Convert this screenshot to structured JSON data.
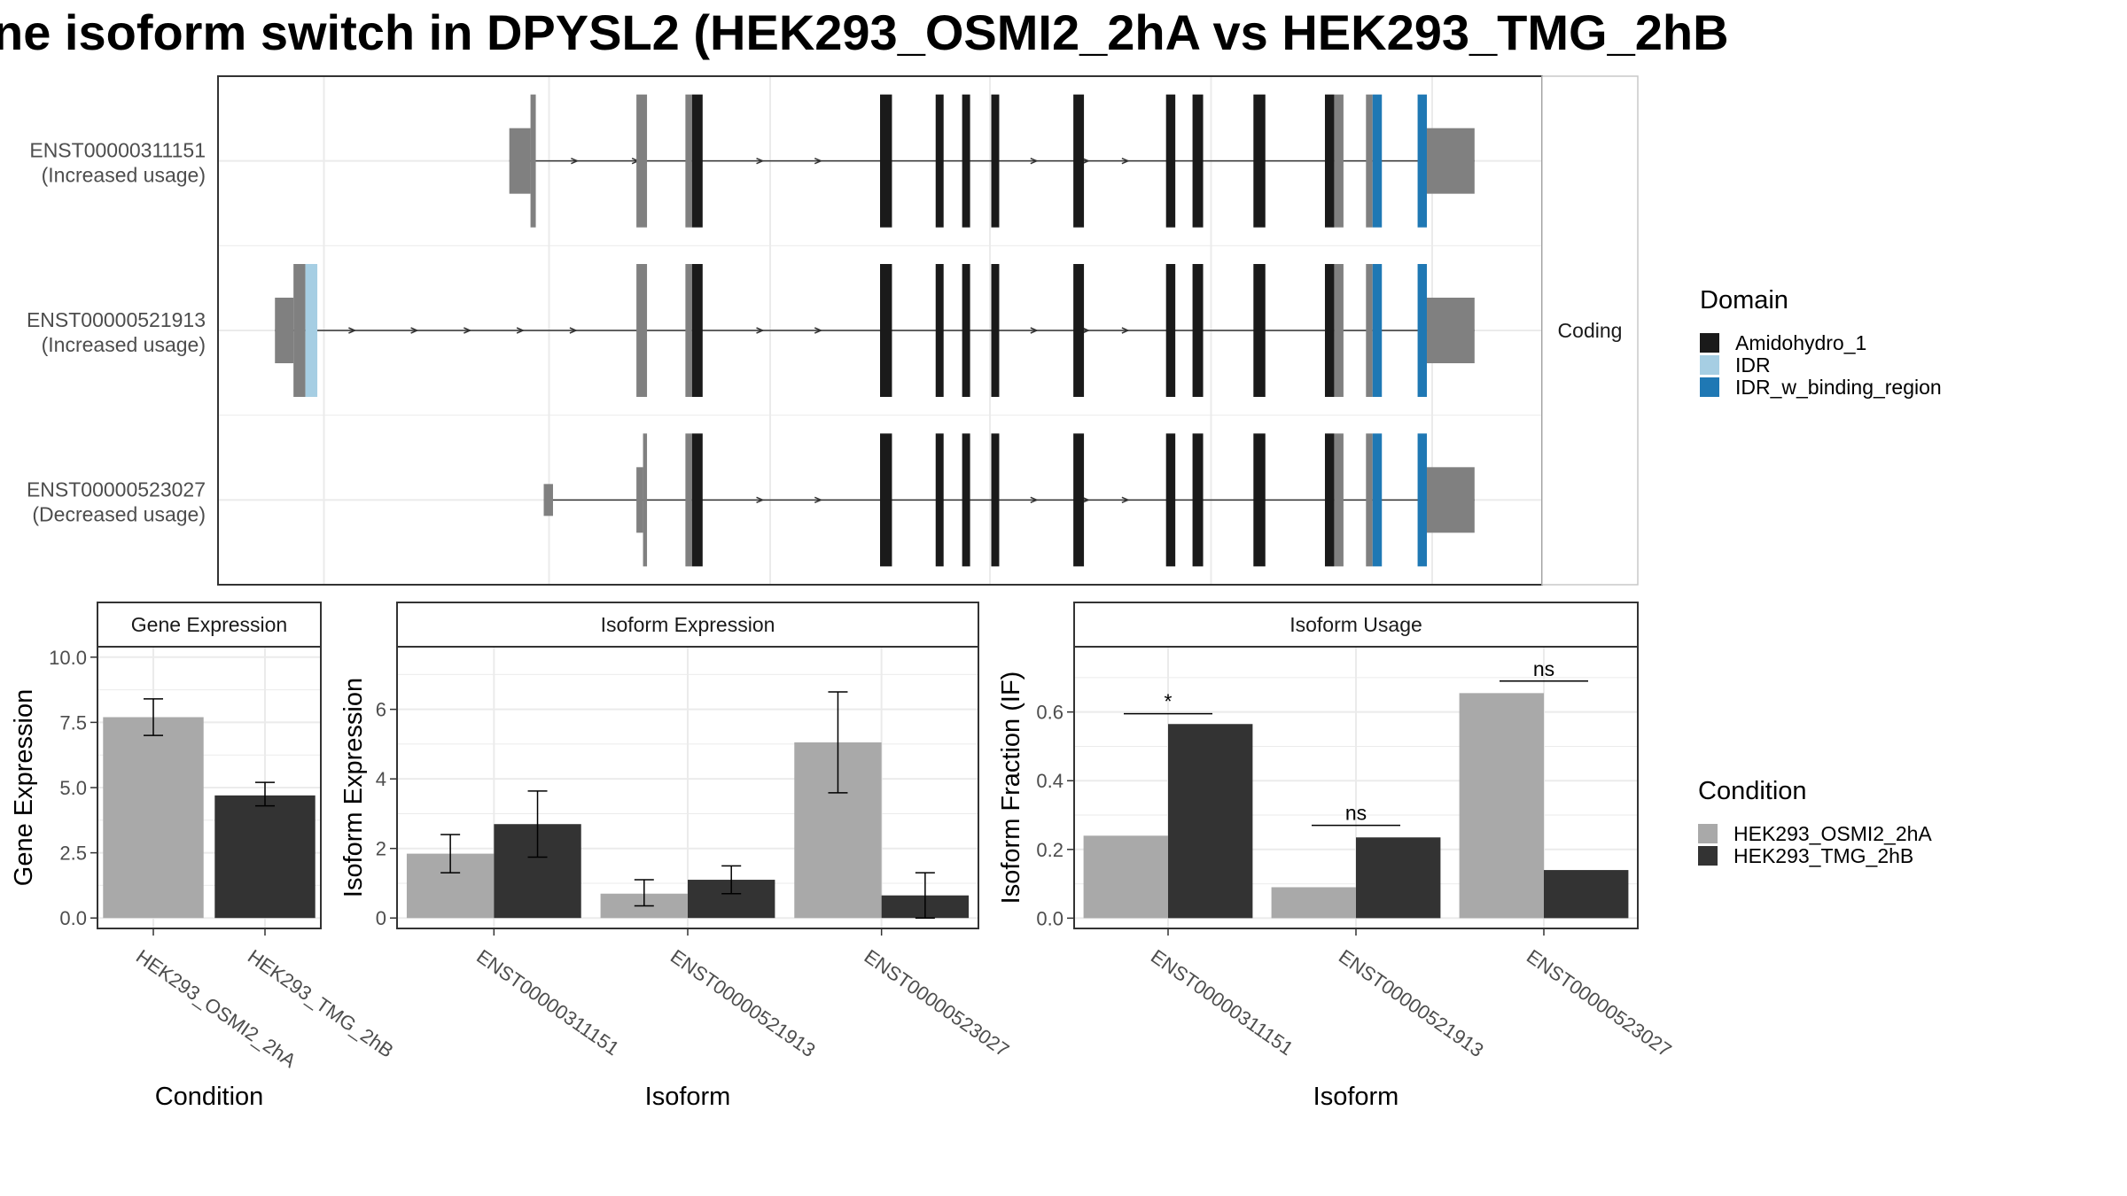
{
  "title": "ne isoform switch in DPYSL2 (HEK293_OSMI2_2hA vs HEK293_TMG_2hB",
  "colors": {
    "utr": "#808080",
    "amidohydro": "#1a1a1a",
    "idr": "#a6cee3",
    "idr_binding": "#1f78b4",
    "cond_a": "#a9a9a9",
    "cond_b": "#333333",
    "grid": "#ebebeb",
    "panel_border": "#333333",
    "strip_bg": "#ffffff"
  },
  "legend_domain": {
    "title": "Domain",
    "items": [
      {
        "label": "Amidohydro_1",
        "color": "#1a1a1a"
      },
      {
        "label": "IDR",
        "color": "#a6cee3"
      },
      {
        "label": "IDR_w_binding_region",
        "color": "#1f78b4"
      }
    ]
  },
  "legend_condition": {
    "title": "Condition",
    "items": [
      {
        "label": "HEK293_OSMI2_2hA",
        "color": "#a9a9a9"
      },
      {
        "label": "HEK293_TMG_2hB",
        "color": "#333333"
      }
    ]
  },
  "chart_data": [
    {
      "type": "gene-structure",
      "facet_label": "Coding",
      "x_range": [
        0,
        1000
      ],
      "isoforms": [
        {
          "id": "ENST00000311151",
          "usage": "(Increased usage)",
          "exons": [
            {
              "s": 220,
              "e": 236,
              "kind": "utr",
              "h": "utr"
            },
            {
              "s": 236,
              "e": 240,
              "kind": "utr",
              "h": "cds"
            },
            {
              "s": 316,
              "e": 324,
              "kind": "utr",
              "h": "cds"
            },
            {
              "s": 353,
              "e": 358,
              "kind": "utr",
              "h": "cds"
            },
            {
              "s": 358,
              "e": 366,
              "kind": "amidohydro",
              "h": "cds"
            },
            {
              "s": 500,
              "e": 509,
              "kind": "amidohydro",
              "h": "cds"
            },
            {
              "s": 542,
              "e": 548,
              "kind": "amidohydro",
              "h": "cds"
            },
            {
              "s": 562,
              "e": 568,
              "kind": "amidohydro",
              "h": "cds"
            },
            {
              "s": 584,
              "e": 590,
              "kind": "amidohydro",
              "h": "cds"
            },
            {
              "s": 646,
              "e": 654,
              "kind": "amidohydro",
              "h": "cds"
            },
            {
              "s": 716,
              "e": 723,
              "kind": "amidohydro",
              "h": "cds"
            },
            {
              "s": 736,
              "e": 744,
              "kind": "amidohydro",
              "h": "cds"
            },
            {
              "s": 782,
              "e": 791,
              "kind": "amidohydro",
              "h": "cds"
            },
            {
              "s": 836,
              "e": 843,
              "kind": "amidohydro",
              "h": "cds"
            },
            {
              "s": 843,
              "e": 850,
              "kind": "utr",
              "h": "cds"
            },
            {
              "s": 867,
              "e": 872,
              "kind": "utr",
              "h": "cds"
            },
            {
              "s": 872,
              "e": 879,
              "kind": "idr_binding",
              "h": "cds"
            },
            {
              "s": 906,
              "e": 913,
              "kind": "idr_binding",
              "h": "cds"
            },
            {
              "s": 913,
              "e": 949,
              "kind": "utr",
              "h": "utr"
            }
          ],
          "arrows": [
            270,
            316,
            410,
            454,
            617,
            656,
            686
          ]
        },
        {
          "id": "ENST00000521913",
          "usage": "(Increased usage)",
          "exons": [
            {
              "s": 43,
              "e": 57,
              "kind": "utr",
              "h": "utr"
            },
            {
              "s": 57,
              "e": 66,
              "kind": "utr",
              "h": "cds"
            },
            {
              "s": 66,
              "e": 75,
              "kind": "idr",
              "h": "cds"
            },
            {
              "s": 316,
              "e": 324,
              "kind": "utr",
              "h": "cds"
            },
            {
              "s": 353,
              "e": 358,
              "kind": "utr",
              "h": "cds"
            },
            {
              "s": 358,
              "e": 366,
              "kind": "amidohydro",
              "h": "cds"
            },
            {
              "s": 500,
              "e": 509,
              "kind": "amidohydro",
              "h": "cds"
            },
            {
              "s": 542,
              "e": 548,
              "kind": "amidohydro",
              "h": "cds"
            },
            {
              "s": 562,
              "e": 568,
              "kind": "amidohydro",
              "h": "cds"
            },
            {
              "s": 584,
              "e": 590,
              "kind": "amidohydro",
              "h": "cds"
            },
            {
              "s": 646,
              "e": 654,
              "kind": "amidohydro",
              "h": "cds"
            },
            {
              "s": 716,
              "e": 723,
              "kind": "amidohydro",
              "h": "cds"
            },
            {
              "s": 736,
              "e": 744,
              "kind": "amidohydro",
              "h": "cds"
            },
            {
              "s": 782,
              "e": 791,
              "kind": "amidohydro",
              "h": "cds"
            },
            {
              "s": 836,
              "e": 843,
              "kind": "amidohydro",
              "h": "cds"
            },
            {
              "s": 843,
              "e": 850,
              "kind": "utr",
              "h": "cds"
            },
            {
              "s": 867,
              "e": 872,
              "kind": "utr",
              "h": "cds"
            },
            {
              "s": 872,
              "e": 879,
              "kind": "idr_binding",
              "h": "cds"
            },
            {
              "s": 906,
              "e": 913,
              "kind": "idr_binding",
              "h": "cds"
            },
            {
              "s": 913,
              "e": 949,
              "kind": "utr",
              "h": "utr"
            }
          ],
          "arrows": [
            102,
            149,
            189,
            229,
            269,
            410,
            454,
            617,
            656,
            686
          ]
        },
        {
          "id": "ENST00000523027",
          "usage": "(Decreased usage)",
          "exons": [
            {
              "s": 246,
              "e": 253,
              "kind": "utr",
              "h": "half"
            },
            {
              "s": 316,
              "e": 321,
              "kind": "utr",
              "h": "utr"
            },
            {
              "s": 321,
              "e": 324,
              "kind": "utr",
              "h": "cds"
            },
            {
              "s": 353,
              "e": 358,
              "kind": "utr",
              "h": "cds"
            },
            {
              "s": 358,
              "e": 366,
              "kind": "amidohydro",
              "h": "cds"
            },
            {
              "s": 500,
              "e": 509,
              "kind": "amidohydro",
              "h": "cds"
            },
            {
              "s": 542,
              "e": 548,
              "kind": "amidohydro",
              "h": "cds"
            },
            {
              "s": 562,
              "e": 568,
              "kind": "amidohydro",
              "h": "cds"
            },
            {
              "s": 584,
              "e": 590,
              "kind": "amidohydro",
              "h": "cds"
            },
            {
              "s": 646,
              "e": 654,
              "kind": "amidohydro",
              "h": "cds"
            },
            {
              "s": 716,
              "e": 723,
              "kind": "amidohydro",
              "h": "cds"
            },
            {
              "s": 736,
              "e": 744,
              "kind": "amidohydro",
              "h": "cds"
            },
            {
              "s": 782,
              "e": 791,
              "kind": "amidohydro",
              "h": "cds"
            },
            {
              "s": 836,
              "e": 843,
              "kind": "amidohydro",
              "h": "cds"
            },
            {
              "s": 843,
              "e": 850,
              "kind": "utr",
              "h": "cds"
            },
            {
              "s": 867,
              "e": 872,
              "kind": "utr",
              "h": "cds"
            },
            {
              "s": 872,
              "e": 879,
              "kind": "idr_binding",
              "h": "cds"
            },
            {
              "s": 906,
              "e": 913,
              "kind": "idr_binding",
              "h": "cds"
            },
            {
              "s": 913,
              "e": 949,
              "kind": "utr",
              "h": "utr"
            }
          ],
          "arrows": [
            410,
            454,
            617,
            656,
            686
          ]
        }
      ]
    },
    {
      "type": "bar",
      "facet_label": "Gene Expression",
      "xlabel": "Condition",
      "ylabel": "Gene Expression",
      "ylim": [
        -0.4,
        10.4
      ],
      "yticks": [
        "0.0",
        "2.5",
        "5.0",
        "7.5",
        "10.0"
      ],
      "categories": [
        "HEK293_OSMI2_2hA",
        "HEK293_TMG_2hB"
      ],
      "series": [
        {
          "name": "HEK293_OSMI2_2hA",
          "values": [
            7.7,
            null
          ],
          "err_low": [
            7.0,
            null
          ],
          "err_high": [
            8.4,
            null
          ]
        },
        {
          "name": "HEK293_TMG_2hB",
          "values": [
            null,
            4.7
          ],
          "err_low": [
            null,
            4.3
          ],
          "err_high": [
            null,
            5.2
          ]
        }
      ]
    },
    {
      "type": "bar",
      "facet_label": "Isoform Expression",
      "xlabel": "Isoform",
      "ylabel": "Isoform Expression",
      "ylim": [
        -0.3,
        7.8
      ],
      "yticks": [
        "0",
        "2",
        "4",
        "6"
      ],
      "categories": [
        "ENST00000311151",
        "ENST00000521913",
        "ENST00000523027"
      ],
      "series": [
        {
          "name": "HEK293_OSMI2_2hA",
          "values": [
            1.85,
            0.7,
            5.05
          ],
          "err_low": [
            1.3,
            0.35,
            3.6
          ],
          "err_high": [
            2.4,
            1.1,
            6.5
          ]
        },
        {
          "name": "HEK293_TMG_2hB",
          "values": [
            2.7,
            1.1,
            0.65
          ],
          "err_low": [
            1.75,
            0.7,
            0.0
          ],
          "err_high": [
            3.65,
            1.5,
            1.3
          ]
        }
      ]
    },
    {
      "type": "bar",
      "facet_label": "Isoform Usage",
      "xlabel": "Isoform",
      "ylabel": "Isoform Fraction (IF)",
      "ylim": [
        -0.03,
        0.79
      ],
      "yticks": [
        "0.0",
        "0.2",
        "0.4",
        "0.6"
      ],
      "categories": [
        "ENST00000311151",
        "ENST00000521913",
        "ENST00000523027"
      ],
      "series": [
        {
          "name": "HEK293_OSMI2_2hA",
          "values": [
            0.24,
            0.09,
            0.655
          ]
        },
        {
          "name": "HEK293_TMG_2hB",
          "values": [
            0.565,
            0.235,
            0.14
          ]
        }
      ],
      "significance": [
        {
          "category": "ENST00000311151",
          "label": "*",
          "y": 0.595
        },
        {
          "category": "ENST00000521913",
          "label": "ns",
          "y": 0.27
        },
        {
          "category": "ENST00000523027",
          "label": "ns",
          "y": 0.69
        }
      ]
    }
  ]
}
